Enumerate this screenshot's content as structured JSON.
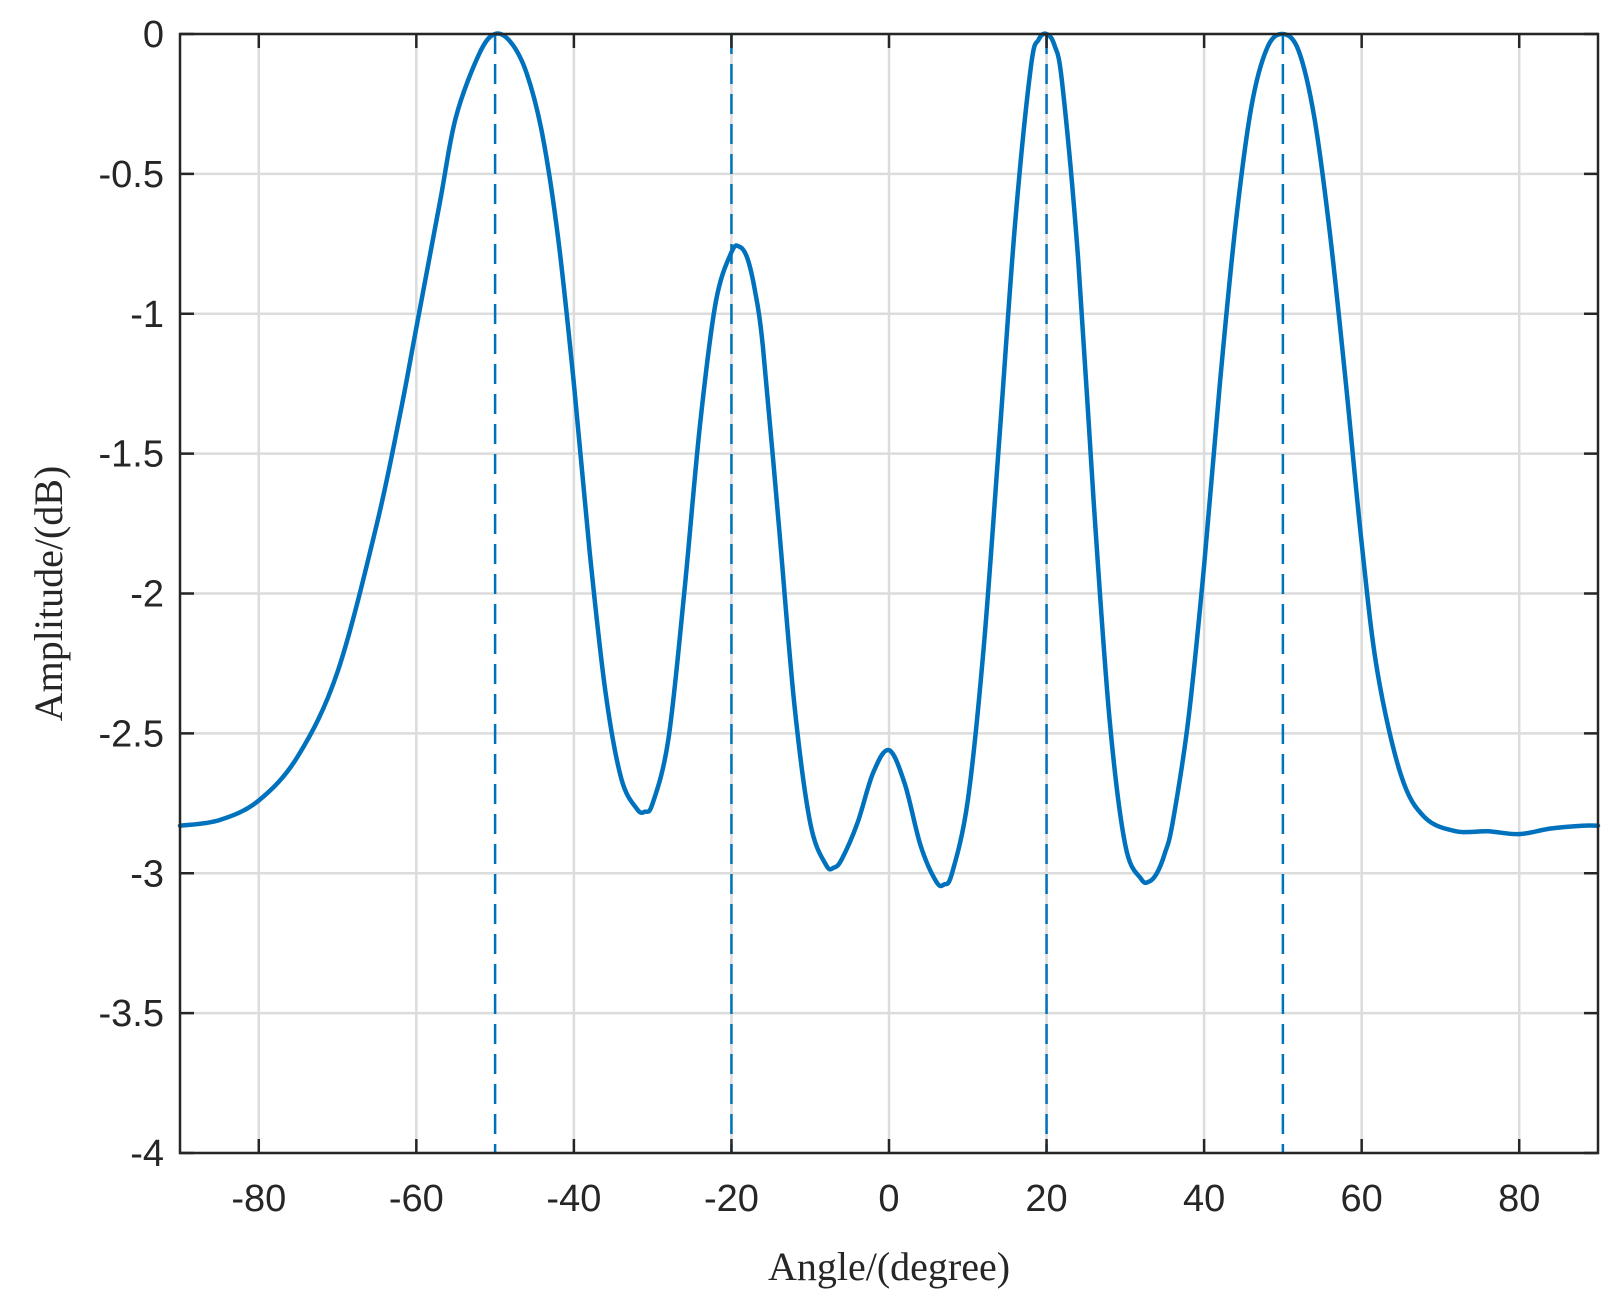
{
  "chart_data": {
    "type": "line",
    "title": "",
    "xlabel": "Angle/(degree)",
    "ylabel": "Amplitude/(dB)",
    "xlim": [
      -90,
      90
    ],
    "ylim": [
      -4,
      0
    ],
    "xticks": [
      -80,
      -60,
      -40,
      -20,
      0,
      20,
      40,
      60,
      80
    ],
    "yticks": [
      0,
      -0.5,
      -1,
      -1.5,
      -2,
      -2.5,
      -3,
      -3.5,
      -4
    ],
    "xtick_labels": [
      "-80",
      "-60",
      "-40",
      "-20",
      "0",
      "20",
      "40",
      "60",
      "80"
    ],
    "ytick_labels": [
      "0",
      "-0.5",
      "-1",
      "-1.5",
      "-2",
      "-2.5",
      "-3",
      "-3.5",
      "-4"
    ],
    "grid": true,
    "color": "#0072BD",
    "series": [
      {
        "x": [
          -90,
          -85,
          -80,
          -75,
          -70,
          -65,
          -62,
          -60,
          -57,
          -55,
          -52,
          -50,
          -48,
          -46,
          -44,
          -42,
          -40,
          -38,
          -36,
          -34,
          -32,
          -31,
          -30,
          -28,
          -26,
          -24,
          -22,
          -20,
          -19,
          -18,
          -17,
          -16,
          -14,
          -12,
          -10,
          -8,
          -7,
          -6,
          -4,
          -2,
          0,
          2,
          4,
          6,
          7,
          8,
          10,
          12,
          14,
          16,
          18,
          19,
          20,
          21,
          22,
          24,
          26,
          28,
          30,
          32,
          33,
          34,
          35,
          36,
          38,
          40,
          42,
          44,
          46,
          48,
          50,
          52,
          54,
          56,
          58,
          60,
          62,
          65,
          68,
          72,
          76,
          80,
          84,
          88,
          90
        ],
        "y": [
          -2.83,
          -2.81,
          -2.74,
          -2.58,
          -2.28,
          -1.75,
          -1.35,
          -1.05,
          -0.6,
          -0.3,
          -0.07,
          0.0,
          -0.03,
          -0.14,
          -0.36,
          -0.73,
          -1.25,
          -1.85,
          -2.35,
          -2.66,
          -2.77,
          -2.78,
          -2.75,
          -2.52,
          -2.0,
          -1.4,
          -0.96,
          -0.78,
          -0.76,
          -0.8,
          -0.92,
          -1.12,
          -1.75,
          -2.4,
          -2.82,
          -2.97,
          -2.98,
          -2.95,
          -2.82,
          -2.64,
          -2.56,
          -2.68,
          -2.9,
          -3.03,
          -3.04,
          -3.0,
          -2.74,
          -2.2,
          -1.45,
          -0.68,
          -0.12,
          -0.02,
          0.0,
          -0.04,
          -0.18,
          -0.8,
          -1.68,
          -2.45,
          -2.9,
          -3.02,
          -3.03,
          -3.0,
          -2.93,
          -2.82,
          -2.45,
          -1.9,
          -1.25,
          -0.68,
          -0.26,
          -0.05,
          0.0,
          -0.06,
          -0.3,
          -0.72,
          -1.25,
          -1.82,
          -2.28,
          -2.65,
          -2.8,
          -2.85,
          -2.85,
          -2.86,
          -2.84,
          -2.83,
          -2.83
        ]
      }
    ],
    "reference_lines": [
      -50,
      -20,
      20,
      50
    ]
  }
}
